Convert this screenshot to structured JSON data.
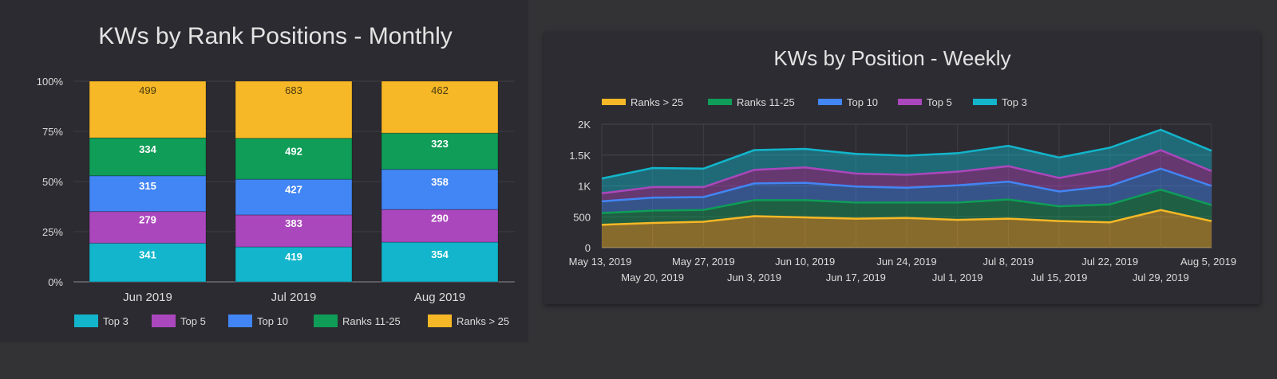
{
  "colors": {
    "top3": "#12b5cb",
    "top5": "#ab47bc",
    "top10": "#4285f4",
    "ranks_11_25": "#0f9d58",
    "ranks_gt_25": "#f6b826"
  },
  "chart_data": [
    {
      "type": "bar",
      "stacked": true,
      "normalized": true,
      "title": "KWs by Rank Positions - Monthly",
      "categories": [
        "Jun 2019",
        "Jul 2019",
        "Aug 2019"
      ],
      "y_ticks": [
        "0%",
        "25%",
        "50%",
        "75%",
        "100%"
      ],
      "ylim": [
        0,
        100
      ],
      "legend_position": "bottom",
      "series": [
        {
          "name": "Top 3",
          "color_key": "top3",
          "values": [
            341,
            419,
            354
          ],
          "labels": [
            "341",
            "419",
            "354"
          ]
        },
        {
          "name": "Top 5",
          "color_key": "top5",
          "values": [
            279,
            383,
            290
          ],
          "labels": [
            "279",
            "383",
            "290"
          ]
        },
        {
          "name": "Top 10",
          "color_key": "top10",
          "values": [
            315,
            427,
            358
          ],
          "labels": [
            "315",
            "427",
            "358"
          ]
        },
        {
          "name": "Ranks 11-25",
          "color_key": "ranks_11_25",
          "values": [
            334,
            492,
            323
          ],
          "labels": [
            "334",
            "492",
            "323"
          ]
        },
        {
          "name": "Ranks > 25",
          "color_key": "ranks_gt_25",
          "values": [
            499,
            683,
            462
          ],
          "labels": [
            "499",
            "683",
            "462"
          ]
        }
      ]
    },
    {
      "type": "area",
      "stacked": true,
      "title": "KWs by Position - Weekly",
      "x": [
        "May 13, 2019",
        "May 20, 2019",
        "May 27, 2019",
        "Jun 3, 2019",
        "Jun 10, 2019",
        "Jun 17, 2019",
        "Jun 24, 2019",
        "Jul 1, 2019",
        "Jul 8, 2019",
        "Jul 15, 2019",
        "Jul 22, 2019",
        "Jul 29, 2019",
        "Aug 5, 2019"
      ],
      "y_ticks": [
        "0",
        "500",
        "1K",
        "1.5K",
        "2K"
      ],
      "ylim": [
        0,
        2000
      ],
      "legend_position": "top",
      "series": [
        {
          "name": "Ranks > 25",
          "color_key": "ranks_gt_25",
          "values": [
            370,
            400,
            420,
            510,
            490,
            470,
            480,
            450,
            470,
            430,
            410,
            610,
            430
          ]
        },
        {
          "name": "Ranks 11-25",
          "color_key": "ranks_11_25",
          "values": [
            190,
            200,
            190,
            260,
            280,
            260,
            250,
            280,
            310,
            240,
            290,
            330,
            260
          ]
        },
        {
          "name": "Top 10",
          "color_key": "top10",
          "values": [
            190,
            210,
            210,
            270,
            280,
            260,
            240,
            280,
            290,
            240,
            300,
            340,
            310
          ]
        },
        {
          "name": "Top 5",
          "color_key": "top5",
          "values": [
            130,
            170,
            160,
            220,
            250,
            210,
            210,
            220,
            250,
            220,
            280,
            300,
            240
          ]
        },
        {
          "name": "Top 3",
          "color_key": "top3",
          "values": [
            240,
            310,
            300,
            320,
            300,
            320,
            310,
            300,
            330,
            330,
            340,
            330,
            330
          ]
        }
      ]
    }
  ]
}
